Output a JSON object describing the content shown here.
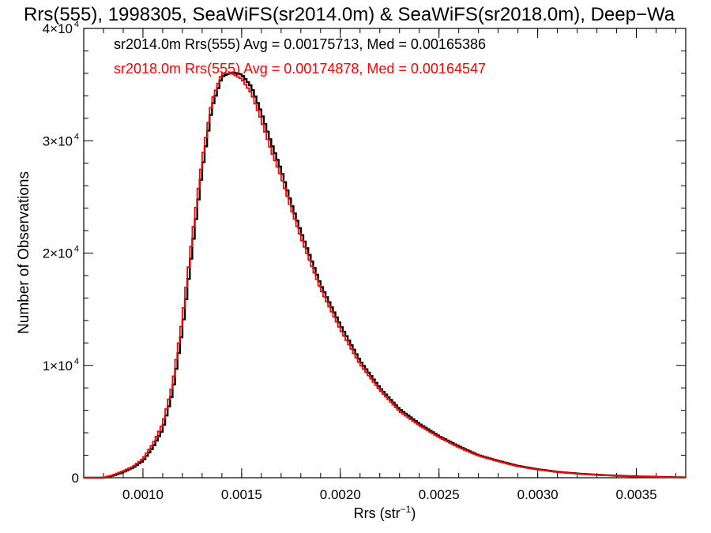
{
  "chart_data": {
    "type": "histogram",
    "title": "Rrs(555), 1998305, SeaWiFS(sr2014.0m) & SeaWiFS(sr2018.0m), Deep−Wa",
    "xlabel": {
      "base": "Rrs (str",
      "sup": "−1",
      "tail": ")"
    },
    "ylabel": "Number of Observations",
    "xlim": [
      0.0007,
      0.00375
    ],
    "ylim": [
      0,
      40000
    ],
    "x_ticks": [
      {
        "value": 0.001,
        "label": "0.0010"
      },
      {
        "value": 0.0015,
        "label": "0.0015"
      },
      {
        "value": 0.002,
        "label": "0.0020"
      },
      {
        "value": 0.0025,
        "label": "0.0025"
      },
      {
        "value": 0.003,
        "label": "0.0030"
      },
      {
        "value": 0.0035,
        "label": "0.0035"
      }
    ],
    "y_ticks": [
      {
        "value": 0,
        "mant": "0",
        "exp": ""
      },
      {
        "value": 10000,
        "mant": "1×10",
        "exp": "4"
      },
      {
        "value": 20000,
        "mant": "2×10",
        "exp": "4"
      },
      {
        "value": 30000,
        "mant": "3×10",
        "exp": "4"
      },
      {
        "value": 40000,
        "mant": "4×10",
        "exp": "4"
      }
    ],
    "bin_width": 1.25e-05,
    "series": [
      {
        "name": "sr2014.0m",
        "color": "#000000",
        "legend_text": "sr2014.0m Rrs(555) Avg = 0.00175713, Med = 0.00165386",
        "x": [
          0.0007,
          0.0008,
          0.00085,
          0.0009,
          0.00095,
          0.001,
          0.00105,
          0.0011,
          0.00115,
          0.0012,
          0.00125,
          0.0013,
          0.00135,
          0.0014,
          0.00145,
          0.0015,
          0.00155,
          0.0016,
          0.00165,
          0.0017,
          0.00175,
          0.0018,
          0.0019,
          0.002,
          0.0021,
          0.0022,
          0.0023,
          0.0024,
          0.0025,
          0.0026,
          0.0027,
          0.0028,
          0.0029,
          0.003,
          0.0031,
          0.0032,
          0.0033,
          0.0034,
          0.0035,
          0.0036,
          0.0037,
          0.00375
        ],
        "y": [
          0,
          0,
          200,
          500,
          900,
          1500,
          2700,
          4300,
          7600,
          13200,
          20400,
          27400,
          33000,
          35700,
          36100,
          35900,
          34800,
          32500,
          29800,
          27400,
          24500,
          21900,
          17200,
          13600,
          10400,
          8000,
          6100,
          4800,
          3700,
          2800,
          2000,
          1500,
          1050,
          750,
          520,
          370,
          260,
          180,
          120,
          80,
          40,
          30
        ]
      },
      {
        "name": "sr2018.0m",
        "color": "#ff0000",
        "legend_text": "sr2018.0m Rrs(555) Avg = 0.00174878, Med = 0.00164547",
        "x": [
          0.0007,
          0.0008,
          0.00085,
          0.0009,
          0.00095,
          0.001,
          0.00105,
          0.0011,
          0.00115,
          0.0012,
          0.00125,
          0.0013,
          0.00135,
          0.0014,
          0.00145,
          0.0015,
          0.00155,
          0.0016,
          0.00165,
          0.0017,
          0.00175,
          0.0018,
          0.0019,
          0.002,
          0.0021,
          0.0022,
          0.0023,
          0.0024,
          0.0025,
          0.0026,
          0.0027,
          0.0028,
          0.0029,
          0.003,
          0.0031,
          0.0032,
          0.0033,
          0.0034,
          0.0035,
          0.0036,
          0.0037,
          0.00375
        ],
        "y": [
          0,
          0,
          250,
          600,
          1000,
          1700,
          3000,
          4800,
          8300,
          14200,
          21500,
          28300,
          33600,
          36000,
          36000,
          35500,
          34200,
          31800,
          29100,
          26800,
          24000,
          21400,
          16800,
          13200,
          10100,
          7800,
          5900,
          4650,
          3600,
          2700,
          1950,
          1450,
          1000,
          720,
          500,
          350,
          250,
          170,
          115,
          75,
          40,
          30
        ]
      }
    ],
    "grid": false,
    "legend_position": "top-left"
  }
}
